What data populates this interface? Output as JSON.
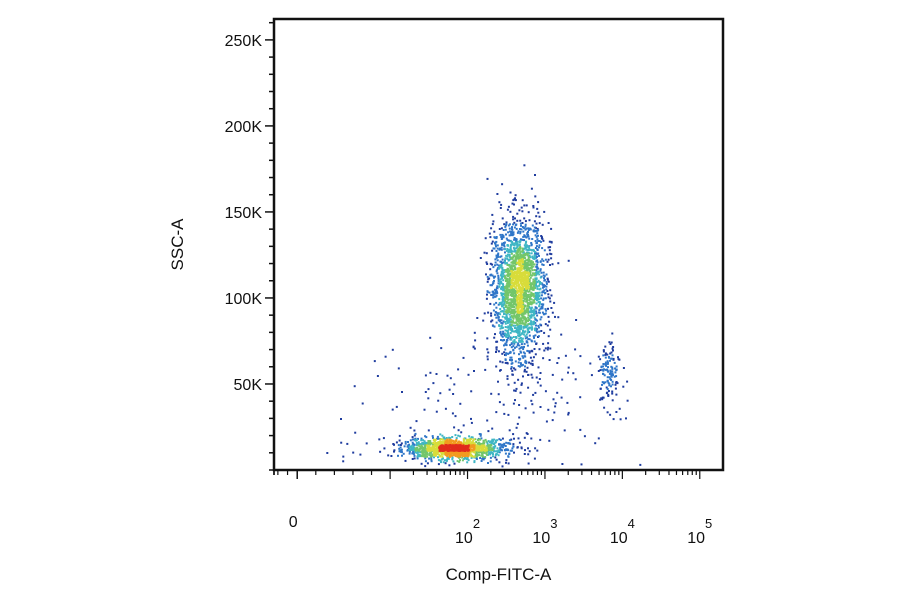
{
  "chart_data": {
    "type": "scatter",
    "title": "",
    "xlabel": "Comp-FITC-A",
    "ylabel": "SSC-A",
    "x_scale": "biexponential",
    "xlim_decades": [
      -0.5,
      5.3
    ],
    "ylim": [
      0,
      262144
    ],
    "y_ticks": [
      {
        "value": 50000,
        "label": "50K"
      },
      {
        "value": 100000,
        "label": "100K"
      },
      {
        "value": 150000,
        "label": "150K"
      },
      {
        "value": 200000,
        "label": "200K"
      },
      {
        "value": 250000,
        "label": "250K"
      }
    ],
    "x_ticks": [
      {
        "value": 0,
        "base": "0",
        "exp": ""
      },
      {
        "value": 100,
        "base": "10",
        "exp": "2"
      },
      {
        "value": 1000,
        "base": "10",
        "exp": "3"
      },
      {
        "value": 10000,
        "base": "10",
        "exp": "4"
      },
      {
        "value": 100000,
        "base": "10",
        "exp": "5"
      }
    ],
    "density_colors": [
      "#1f3c9e",
      "#2f76c8",
      "#3fb6c4",
      "#73c66a",
      "#d8dc3a",
      "#f29a1f",
      "#e02b1c"
    ],
    "populations": [
      {
        "center_x": 65,
        "center_y": 13000,
        "sd_x_decades": 0.33,
        "sd_y": 3000,
        "events": 1400
      },
      {
        "center_x": 450,
        "center_y": 106000,
        "sd_x_decades": 0.17,
        "sd_y": 20000,
        "events": 2200
      },
      {
        "center_x": 6500,
        "center_y": 58000,
        "sd_x_decades": 0.08,
        "sd_y": 9000,
        "events": 120
      },
      {
        "center_x": 250,
        "center_y": 40000,
        "sd_x_decades": 0.8,
        "sd_y": 20000,
        "events": 180
      }
    ],
    "grid": false,
    "legend": "none"
  }
}
